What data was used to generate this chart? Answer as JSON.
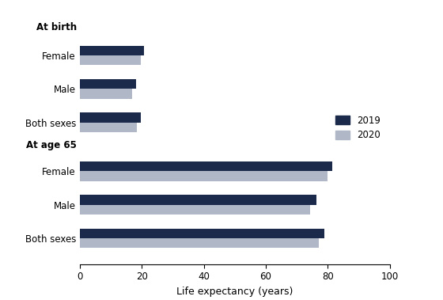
{
  "xlabel": "Life expectancy (years)",
  "xlim": [
    0,
    100
  ],
  "xticks": [
    0,
    20,
    40,
    60,
    80,
    100
  ],
  "color_2019": "#1b2a4a",
  "color_2020": "#b0b8c8",
  "bar_height": 0.38,
  "groups": [
    {
      "label": "Both sexes",
      "section": "At birth",
      "val_2019": 78.8,
      "val_2020": 77.0
    },
    {
      "label": "Male",
      "section": "At birth",
      "val_2019": 76.3,
      "val_2020": 74.2
    },
    {
      "label": "Female",
      "section": "At birth",
      "val_2019": 81.4,
      "val_2020": 79.9
    },
    {
      "label": "Both sexes",
      "section": "At age 65",
      "val_2019": 19.6,
      "val_2020": 18.5
    },
    {
      "label": "Male",
      "section": "At age 65",
      "val_2019": 18.2,
      "val_2020": 17.0
    },
    {
      "label": "Female",
      "section": "At age 65",
      "val_2019": 20.8,
      "val_2020": 19.8
    }
  ],
  "section_header_At_birth": "At birth",
  "section_header_At_age_65": "At age 65",
  "legend_labels": [
    "2019",
    "2020"
  ],
  "label_fontsize": 8.5,
  "section_fontsize": 8.5,
  "xlabel_fontsize": 9,
  "tick_fontsize": 8.5,
  "value_fontsize": 8
}
